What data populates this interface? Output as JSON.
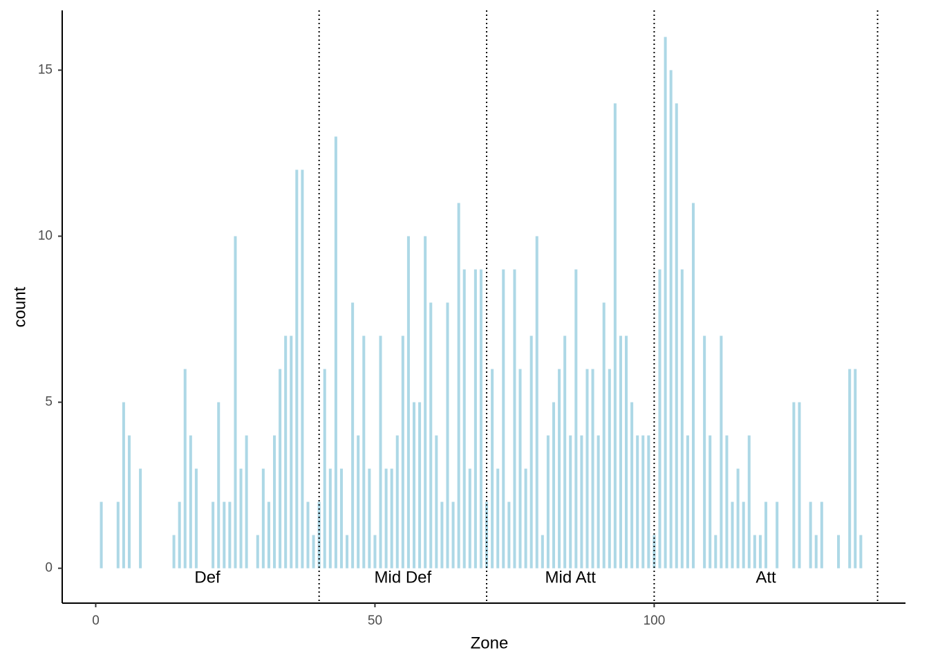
{
  "chart_data": {
    "type": "bar",
    "x": [
      1,
      4,
      5,
      6,
      8,
      14,
      15,
      16,
      17,
      18,
      21,
      22,
      23,
      24,
      25,
      26,
      27,
      29,
      30,
      31,
      32,
      33,
      34,
      35,
      36,
      37,
      38,
      39,
      40,
      41,
      42,
      43,
      44,
      45,
      46,
      47,
      48,
      49,
      50,
      51,
      52,
      53,
      54,
      55,
      56,
      57,
      58,
      59,
      60,
      61,
      62,
      63,
      64,
      65,
      66,
      67,
      68,
      69,
      70,
      71,
      72,
      73,
      74,
      75,
      76,
      77,
      78,
      79,
      80,
      81,
      82,
      83,
      84,
      85,
      86,
      87,
      88,
      89,
      90,
      91,
      92,
      93,
      94,
      95,
      96,
      97,
      98,
      99,
      100,
      101,
      102,
      103,
      104,
      105,
      106,
      107,
      109,
      110,
      111,
      112,
      113,
      114,
      115,
      116,
      117,
      118,
      119,
      120,
      122,
      125,
      126,
      128,
      129,
      130,
      133,
      135,
      136,
      137
    ],
    "values": [
      2,
      2,
      5,
      4,
      3,
      1,
      2,
      6,
      4,
      3,
      2,
      5,
      2,
      2,
      10,
      3,
      4,
      1,
      3,
      2,
      4,
      6,
      7,
      7,
      12,
      12,
      2,
      1,
      2,
      6,
      3,
      13,
      3,
      1,
      8,
      4,
      7,
      3,
      1,
      7,
      3,
      3,
      4,
      7,
      10,
      5,
      5,
      10,
      8,
      4,
      2,
      8,
      2,
      11,
      9,
      3,
      9,
      9,
      2,
      6,
      3,
      9,
      2,
      9,
      6,
      3,
      7,
      10,
      1,
      4,
      5,
      6,
      7,
      4,
      9,
      4,
      6,
      6,
      4,
      8,
      6,
      14,
      7,
      7,
      5,
      4,
      4,
      4,
      1,
      9,
      16,
      15,
      14,
      9,
      4,
      11,
      7,
      4,
      1,
      7,
      4,
      2,
      3,
      2,
      4,
      1,
      1,
      2,
      2,
      5,
      5,
      2,
      1,
      2,
      1,
      6,
      6,
      1
    ],
    "color": "#add8e6",
    "xlabel": "Zone",
    "ylabel": "count",
    "xlim": [
      -6,
      145
    ],
    "ylim": [
      -1.05,
      16.8
    ],
    "xticks": [
      0,
      50,
      100
    ],
    "yticks": [
      0,
      5,
      10,
      15
    ],
    "grid": false,
    "zones": [
      {
        "label": "Def",
        "start": 0,
        "end": 40
      },
      {
        "label": "Mid Def",
        "start": 40,
        "end": 70
      },
      {
        "label": "Mid Att",
        "start": 70,
        "end": 100
      },
      {
        "label": "Att",
        "start": 100,
        "end": 140
      }
    ]
  }
}
